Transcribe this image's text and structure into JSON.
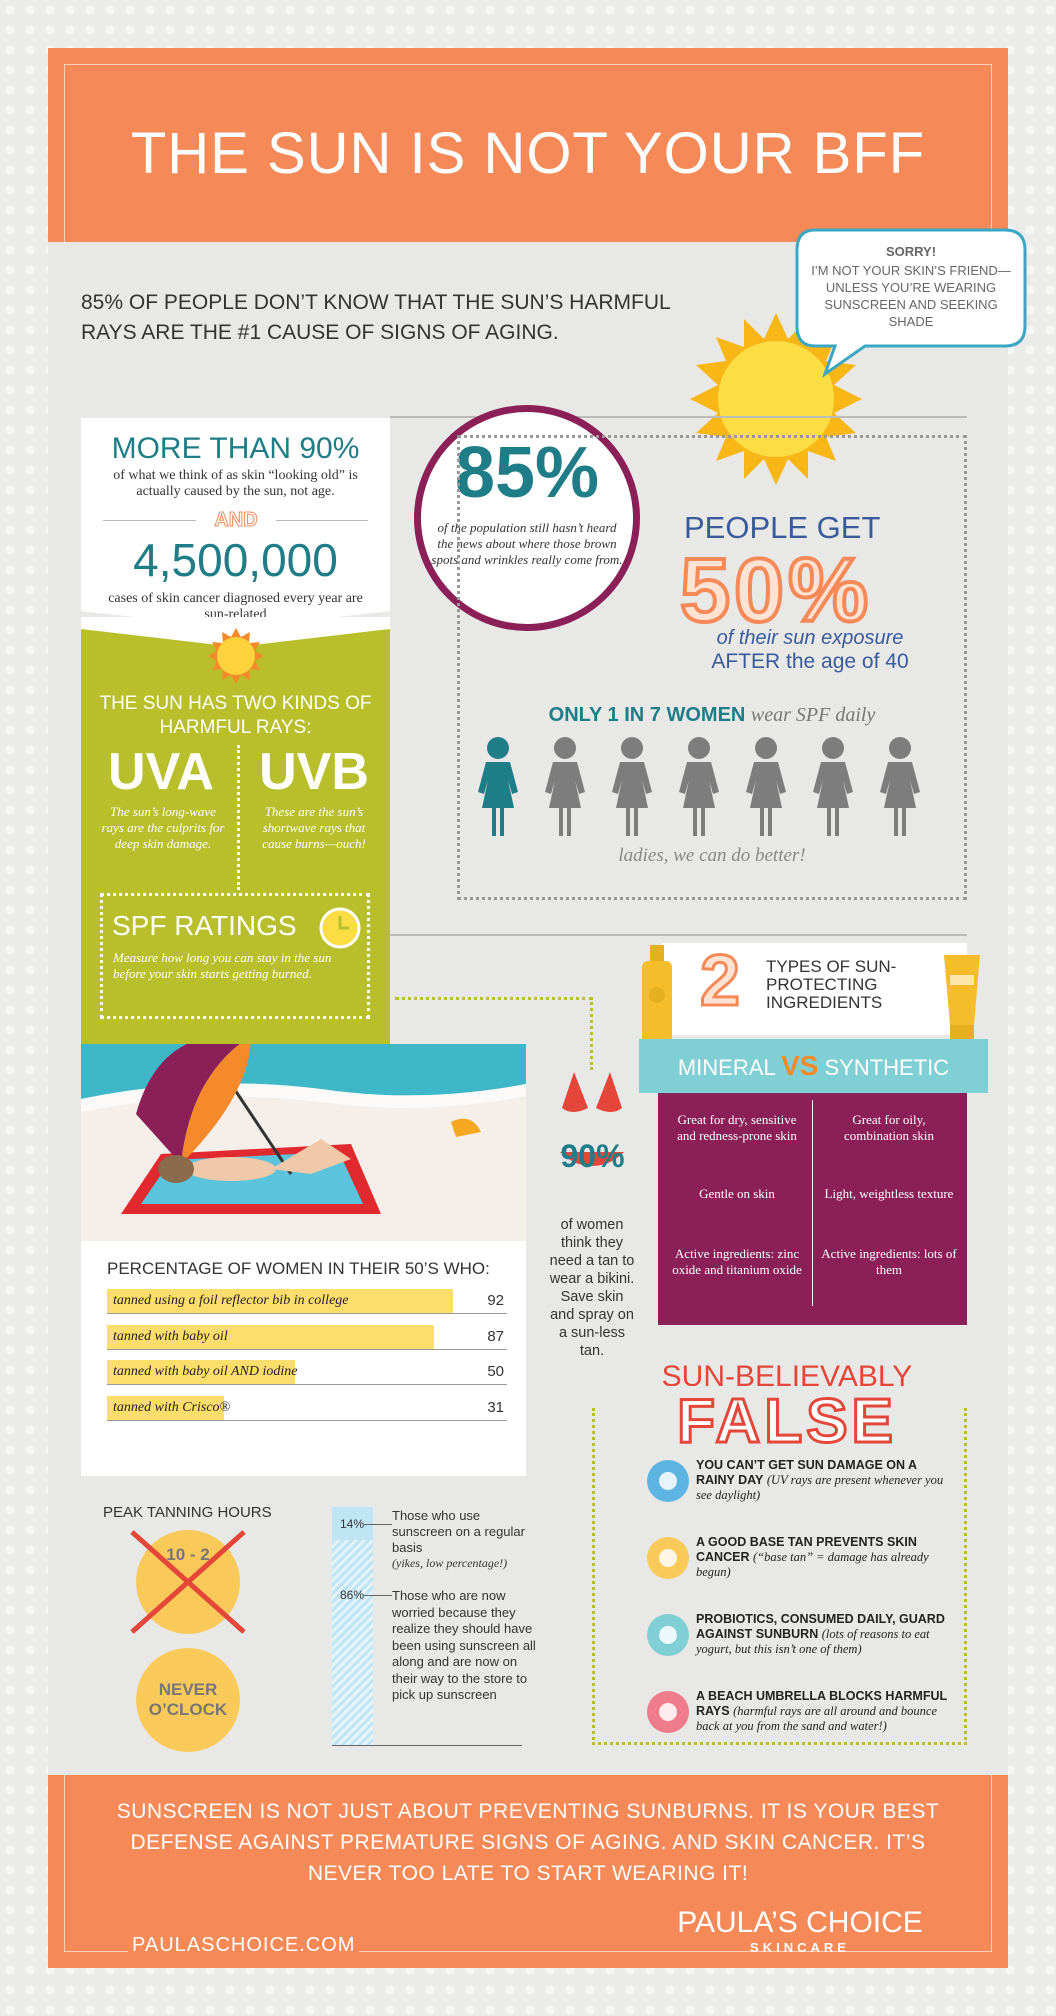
{
  "header": {
    "title": "THE SUN IS NOT YOUR BFF"
  },
  "intro": "85% OF PEOPLE DON’T KNOW THAT THE SUN’S HARMFUL RAYS ARE THE #1 CAUSE OF SIGNS OF AGING.",
  "speech_bubble": {
    "title": "SORRY!",
    "text": "I’M NOT YOUR SKIN’S FRIEND—UNLESS YOU’RE WEARING SUNSCREEN AND SEEKING SHADE"
  },
  "facts": {
    "headline": "MORE THAN 90%",
    "text": "of what we think of as skin “looking old” is actually caused by the sun, not age.",
    "connector": "AND",
    "number": "4,500,000",
    "number_text": "cases of skin cancer diagnosed every year are sun-related"
  },
  "rays": {
    "title": "THE SUN HAS TWO KINDS OF HARMFUL RAYS:",
    "types": [
      {
        "name": "UVA",
        "text": "The sun’s long-wave rays are the culprits for deep skin damage."
      },
      {
        "name": "UVB",
        "text": "These are the sun’s shortwave rays that cause burns—ouch!"
      }
    ]
  },
  "spf": {
    "title": "SPF RATINGS",
    "text": "Measure how long you can stay in the sun before your skin starts getting burned."
  },
  "circle_stat": {
    "value": "85%",
    "text": "of the population still hasn’t heard the news about where those brown spots and wrinkles really come from."
  },
  "exposure": {
    "lead": "PEOPLE GET",
    "value": "50%",
    "line1": "of their sun exposure",
    "line2": "AFTER the age of 40"
  },
  "women": {
    "highlight": "ONLY 1 IN 7 WOMEN",
    "text": "wear SPF daily",
    "note": "ladies, we can do better!"
  },
  "bikini": {
    "value": "90%",
    "text": "of women think they need a tan to wear a bikini. Save skin and spray on a sun-less tan."
  },
  "ingredients": {
    "count": "2",
    "title": "TYPES OF SUN-PROTECTING INGREDIENTS",
    "left": "MINERAL",
    "vs": "VS",
    "right": "SYNTHETIC",
    "rows": [
      [
        "Great for dry, sensitive and redness-prone skin",
        "Great for oily, combination skin"
      ],
      [
        "Gentle on skin",
        "Light, weightless texture"
      ],
      [
        "Active ingredients: zinc oxide and titanium oxide",
        "Active ingredients: lots of them"
      ]
    ]
  },
  "survey": {
    "title": "PERCENTAGE OF WOMEN IN THEIR 50’S WHO:",
    "items": [
      {
        "label": "tanned using a foil reflector bib in college",
        "value": 92
      },
      {
        "label": "tanned with baby oil",
        "value": 87
      },
      {
        "label": "tanned with baby oil AND iodine",
        "value": 50
      },
      {
        "label": "tanned with Crisco®",
        "value": 31
      }
    ]
  },
  "peak": {
    "title": "PEAK TANNING HOURS",
    "crossed": "10 - 2",
    "answer": "NEVER O’CLOCK"
  },
  "sunscreen_use": [
    {
      "value": "14%",
      "text": "Those who use sunscreen on a regular basis",
      "note": "(yikes, low percentage!)"
    },
    {
      "value": "86%",
      "text": "Those who are now worried because they realize they should have been using sunscreen all along and are now on their way to the store to pick up sunscreen"
    }
  ],
  "myths": {
    "lead": "SUN-BELIEVABLY",
    "title": "FALSE",
    "items": [
      {
        "claim": "YOU CAN’T GET SUN DAMAGE ON A RAINY DAY",
        "note": "(UV rays are present whenever you see daylight)"
      },
      {
        "claim": "A GOOD BASE TAN PREVENTS SKIN CANCER",
        "note": "(“base tan” = damage has already begun)"
      },
      {
        "claim": "PROBIOTICS, CONSUMED DAILY, GUARD AGAINST SUNBURN",
        "note": "(lots of reasons to eat yogurt, but this isn’t one of them)"
      },
      {
        "claim": "A BEACH UMBRELLA BLOCKS HARMFUL RAYS",
        "note": "(harmful rays are all around and bounce back at you from the sand and water!)"
      }
    ]
  },
  "footer": {
    "text": "SUNSCREEN IS NOT JUST ABOUT PREVENTING SUNBURNS. IT IS YOUR BEST DEFENSE AGAINST PREMATURE SIGNS OF AGING. AND SKIN CANCER. IT’S NEVER TOO LATE TO START WEARING IT!",
    "url": "PAULASCHOICE.COM",
    "brand": "PAULA’S CHOICE",
    "brand_sub": "SKINCARE"
  }
}
